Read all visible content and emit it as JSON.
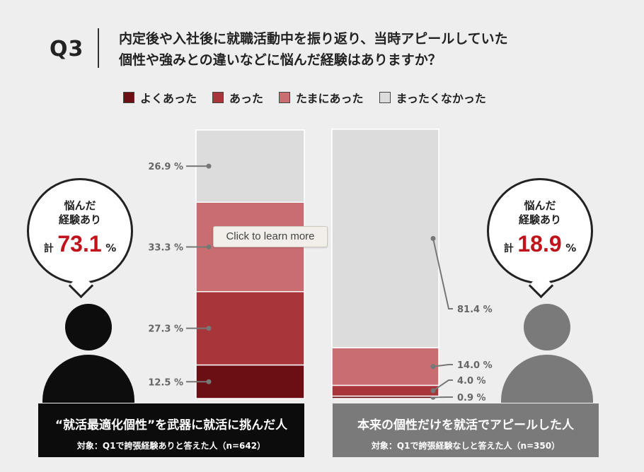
{
  "question": {
    "label": "Q3",
    "line1": "内定後や入社後に就職活動中を振り返り、当時アピールしていた",
    "line2": "個性や強みとの違いなどに悩んだ経験はありますか？"
  },
  "legend": [
    {
      "label": "よくあった",
      "color": "#6b0f12"
    },
    {
      "label": "あった",
      "color": "#a8353a"
    },
    {
      "label": "たまにあった",
      "color": "#c96d70"
    },
    {
      "label": "まったくなかった",
      "color": "#dcdcdc"
    }
  ],
  "bubbles": {
    "left": {
      "head1": "悩んだ",
      "head2": "経験あり",
      "kei": "計",
      "value": "73.1",
      "unit": "%"
    },
    "right": {
      "head1": "悩んだ",
      "head2": "経験あり",
      "kei": "計",
      "value": "18.9",
      "unit": "%"
    }
  },
  "banners": {
    "left": {
      "title": "“就活最適化個性”を武器に就活に挑んだ人",
      "sub": "対象：Q1で誇張経験ありと答えた人（n=642）"
    },
    "right": {
      "title": "本来の個性だけを就活でアピールした人",
      "sub": "対象：Q1で誇張経験なしと答えた人（n=350）"
    }
  },
  "tooltip": {
    "text": "Click to learn more"
  },
  "chart_data": {
    "type": "bar",
    "stacked": true,
    "unit": "%",
    "categories": [
      "“就活最適化個性”を武器に就活に挑んだ人",
      "本来の個性だけを就活でアピールした人"
    ],
    "series": [
      {
        "name": "よくあった",
        "color": "#6b0f12",
        "values": [
          12.5,
          0.9
        ],
        "labels": [
          "12.5 %",
          "0.9 %"
        ]
      },
      {
        "name": "あった",
        "color": "#a8353a",
        "values": [
          27.3,
          4.0
        ],
        "labels": [
          "27.3 %",
          "4.0 %"
        ]
      },
      {
        "name": "たまにあった",
        "color": "#c96d70",
        "values": [
          33.3,
          14.0
        ],
        "labels": [
          "33.3 %",
          "14.0 %"
        ]
      },
      {
        "name": "まったくなかった",
        "color": "#dcdcdc",
        "values": [
          26.9,
          81.4
        ],
        "labels": [
          "26.9 %",
          "81.4 %"
        ]
      }
    ],
    "ylim": [
      0,
      100
    ]
  }
}
